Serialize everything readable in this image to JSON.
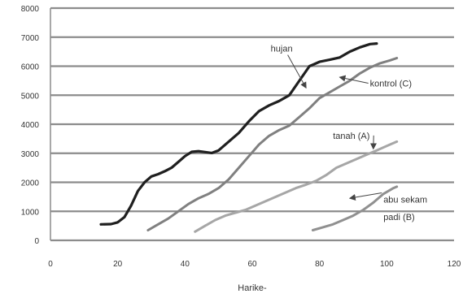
{
  "chart_data": {
    "type": "line",
    "title": "",
    "xlabel": "Harike-",
    "ylabel": "",
    "xlim": [
      0,
      120
    ],
    "ylim": [
      0,
      8000
    ],
    "x_ticks": [
      "0",
      "20",
      "40",
      "60",
      "80",
      "100",
      "120"
    ],
    "y_ticks": [
      "0",
      "1000",
      "2000",
      "3000",
      "4000",
      "5000",
      "6000",
      "7000",
      "8000"
    ],
    "grid": "horizontal",
    "series": [
      {
        "name": "hujan",
        "color": "#1f1f1f",
        "points": [
          [
            15,
            550
          ],
          [
            18,
            560
          ],
          [
            20,
            620
          ],
          [
            22,
            800
          ],
          [
            24,
            1200
          ],
          [
            26,
            1700
          ],
          [
            28,
            2000
          ],
          [
            30,
            2200
          ],
          [
            32,
            2280
          ],
          [
            34,
            2380
          ],
          [
            36,
            2500
          ],
          [
            38,
            2700
          ],
          [
            40,
            2900
          ],
          [
            42,
            3050
          ],
          [
            44,
            3070
          ],
          [
            46,
            3040
          ],
          [
            48,
            3010
          ],
          [
            50,
            3100
          ],
          [
            53,
            3400
          ],
          [
            56,
            3700
          ],
          [
            59,
            4100
          ],
          [
            62,
            4450
          ],
          [
            65,
            4650
          ],
          [
            68,
            4800
          ],
          [
            71,
            5000
          ],
          [
            74,
            5500
          ],
          [
            77,
            6000
          ],
          [
            80,
            6150
          ],
          [
            83,
            6220
          ],
          [
            86,
            6300
          ],
          [
            89,
            6500
          ],
          [
            92,
            6650
          ],
          [
            95,
            6760
          ],
          [
            97,
            6780
          ]
        ]
      },
      {
        "name": "kontrol (C)",
        "color": "#808080",
        "points": [
          [
            29,
            350
          ],
          [
            32,
            550
          ],
          [
            35,
            750
          ],
          [
            38,
            1000
          ],
          [
            41,
            1250
          ],
          [
            44,
            1450
          ],
          [
            47,
            1600
          ],
          [
            50,
            1800
          ],
          [
            53,
            2100
          ],
          [
            56,
            2500
          ],
          [
            59,
            2900
          ],
          [
            62,
            3300
          ],
          [
            65,
            3600
          ],
          [
            68,
            3800
          ],
          [
            71,
            3950
          ],
          [
            74,
            4250
          ],
          [
            77,
            4550
          ],
          [
            80,
            4900
          ],
          [
            83,
            5100
          ],
          [
            86,
            5300
          ],
          [
            89,
            5500
          ],
          [
            92,
            5750
          ],
          [
            95,
            5950
          ],
          [
            98,
            6100
          ],
          [
            101,
            6200
          ],
          [
            103,
            6280
          ]
        ]
      },
      {
        "name": "tanah (A)",
        "color": "#a6a6a6",
        "points": [
          [
            43,
            300
          ],
          [
            46,
            500
          ],
          [
            49,
            700
          ],
          [
            52,
            850
          ],
          [
            55,
            950
          ],
          [
            58,
            1050
          ],
          [
            61,
            1200
          ],
          [
            64,
            1350
          ],
          [
            67,
            1500
          ],
          [
            70,
            1650
          ],
          [
            73,
            1800
          ],
          [
            76,
            1920
          ],
          [
            79,
            2050
          ],
          [
            82,
            2250
          ],
          [
            85,
            2500
          ],
          [
            88,
            2650
          ],
          [
            91,
            2800
          ],
          [
            94,
            2950
          ],
          [
            97,
            3100
          ],
          [
            100,
            3250
          ],
          [
            103,
            3400
          ]
        ]
      },
      {
        "name": "abu sekam padi (B)",
        "color": "#909090",
        "points": [
          [
            78,
            350
          ],
          [
            81,
            450
          ],
          [
            84,
            550
          ],
          [
            87,
            700
          ],
          [
            90,
            850
          ],
          [
            93,
            1050
          ],
          [
            96,
            1300
          ],
          [
            99,
            1600
          ],
          [
            102,
            1800
          ],
          [
            103,
            1850
          ]
        ]
      }
    ],
    "annotations": [
      {
        "label": "hujan",
        "color": "#1f1f1f",
        "x": 72,
        "y": 6500,
        "ax": 76,
        "ay": 5250
      },
      {
        "label": "kontrol (C)",
        "color": "#555555",
        "x": 95,
        "y": 5300,
        "ax": 86,
        "ay": 5620
      },
      {
        "label": "tanah (A)",
        "color": "#555555",
        "x": 84,
        "y": 3500,
        "ax": 96,
        "ay": 3150
      },
      {
        "label": "abu sekam",
        "color": "#555555",
        "x": 99,
        "y": 1300,
        "ax": 89,
        "ay": 1450
      },
      {
        "label": "padi (B)",
        "color": "#555555",
        "x": 99,
        "y": 700,
        "ax": null,
        "ay": null
      }
    ]
  }
}
